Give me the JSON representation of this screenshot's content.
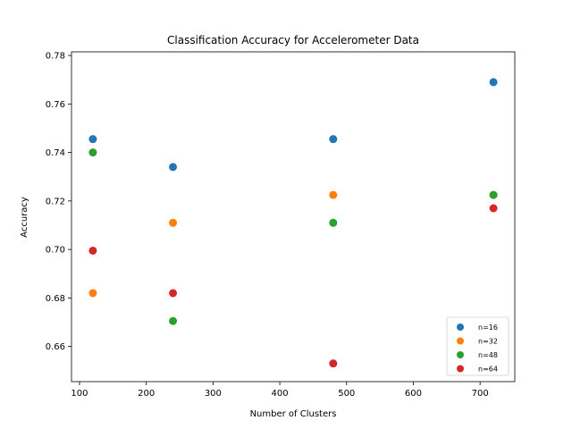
{
  "chart_data": {
    "type": "scatter",
    "title": "Classification Accuracy for Accelerometer Data",
    "xlabel": "Number of Clusters",
    "ylabel": "Accuracy",
    "xlim": [
      88,
      752
    ],
    "ylim": [
      0.6455,
      0.7815
    ],
    "xticks": [
      100,
      200,
      300,
      400,
      500,
      600,
      700
    ],
    "yticks": [
      0.66,
      0.68,
      0.7,
      0.72,
      0.74,
      0.76,
      0.78
    ],
    "ytick_labels": [
      "0.66",
      "0.68",
      "0.70",
      "0.72",
      "0.74",
      "0.76",
      "0.78"
    ],
    "grid": false,
    "legend_position": "lower-right",
    "series": [
      {
        "name": "n=16",
        "color": "#1f77b4",
        "x": [
          120,
          240,
          480,
          720
        ],
        "y": [
          0.7455,
          0.734,
          0.7455,
          0.769
        ]
      },
      {
        "name": "n=32",
        "color": "#ff7f0e",
        "x": [
          120,
          240,
          480,
          720
        ],
        "y": [
          0.682,
          0.711,
          0.7225,
          0.7225
        ]
      },
      {
        "name": "n=48",
        "color": "#2ca02c",
        "x": [
          120,
          240,
          480,
          720
        ],
        "y": [
          0.74,
          0.6705,
          0.711,
          0.7225
        ]
      },
      {
        "name": "n=64",
        "color": "#d62728",
        "x": [
          120,
          240,
          480,
          720
        ],
        "y": [
          0.6995,
          0.682,
          0.653,
          0.717
        ]
      }
    ]
  }
}
